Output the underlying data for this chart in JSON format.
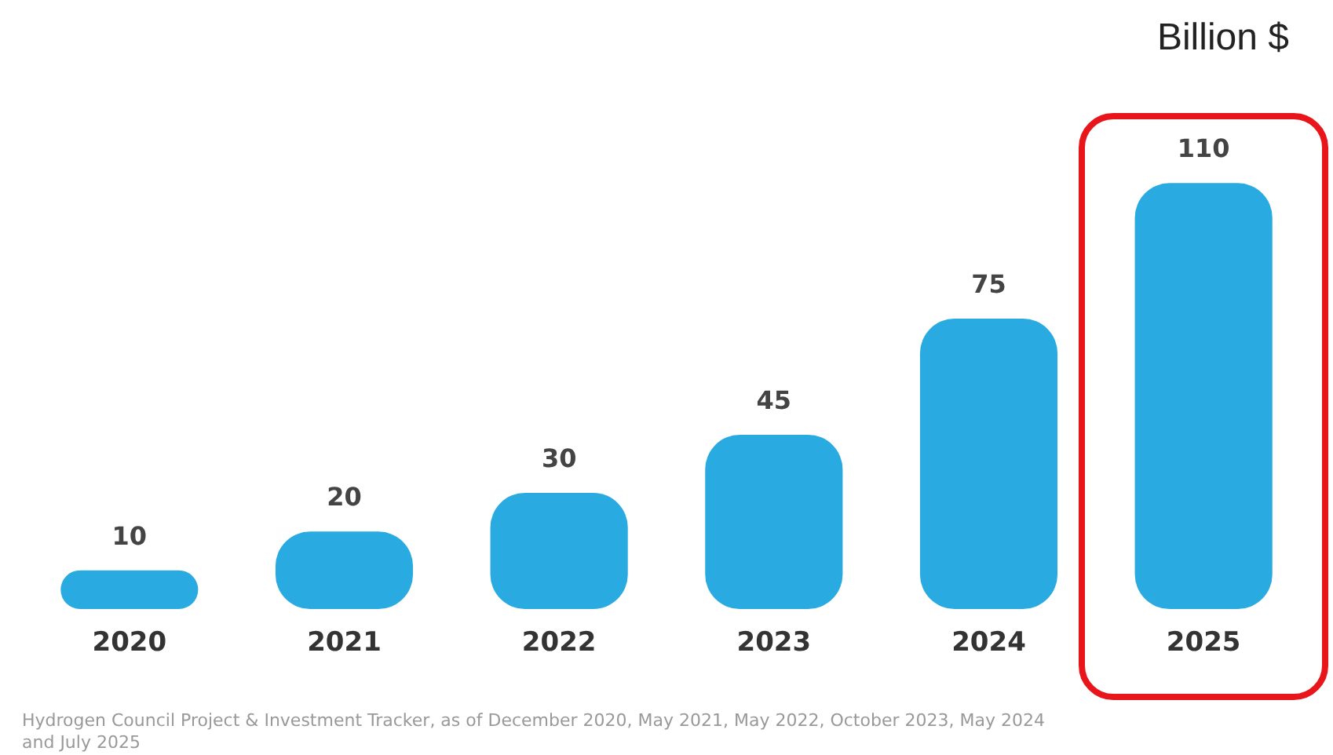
{
  "chart_data": {
    "type": "bar",
    "ylabel": "Billion $",
    "categories": [
      "2020",
      "2021",
      "2022",
      "2023",
      "2024",
      "2025"
    ],
    "values": [
      10,
      20,
      30,
      45,
      75,
      110
    ],
    "color": "#29abe2",
    "data_labels": true,
    "annotations": [
      "Hydrogen Council Project & Investment Tracker, as of December 2020, May 2021, May 2022, October 2023, May 2024 and July 2025"
    ]
  }
}
